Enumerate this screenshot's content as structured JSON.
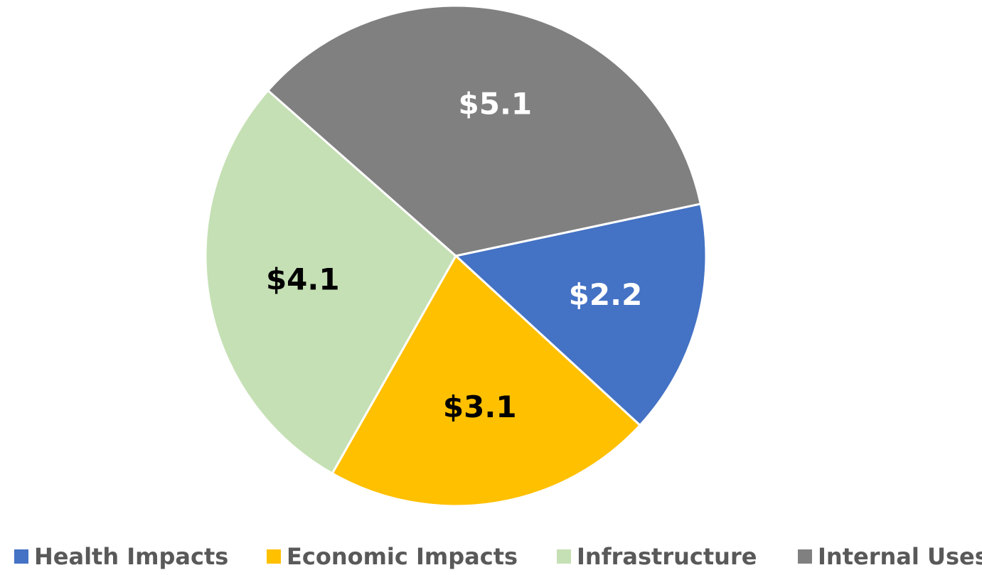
{
  "chart_data": {
    "type": "pie",
    "categories": [
      "Health Impacts",
      "Economic Impacts",
      "Infrastructure",
      "Internal Uses"
    ],
    "values": [
      2.2,
      3.1,
      4.1,
      5.1
    ],
    "value_labels": [
      "$2.2",
      "$3.1",
      "$4.1",
      "$5.1"
    ],
    "colors": [
      "#4472c4",
      "#ffc000",
      "#c5e0b4",
      "#808080"
    ],
    "legend": "bottom"
  }
}
